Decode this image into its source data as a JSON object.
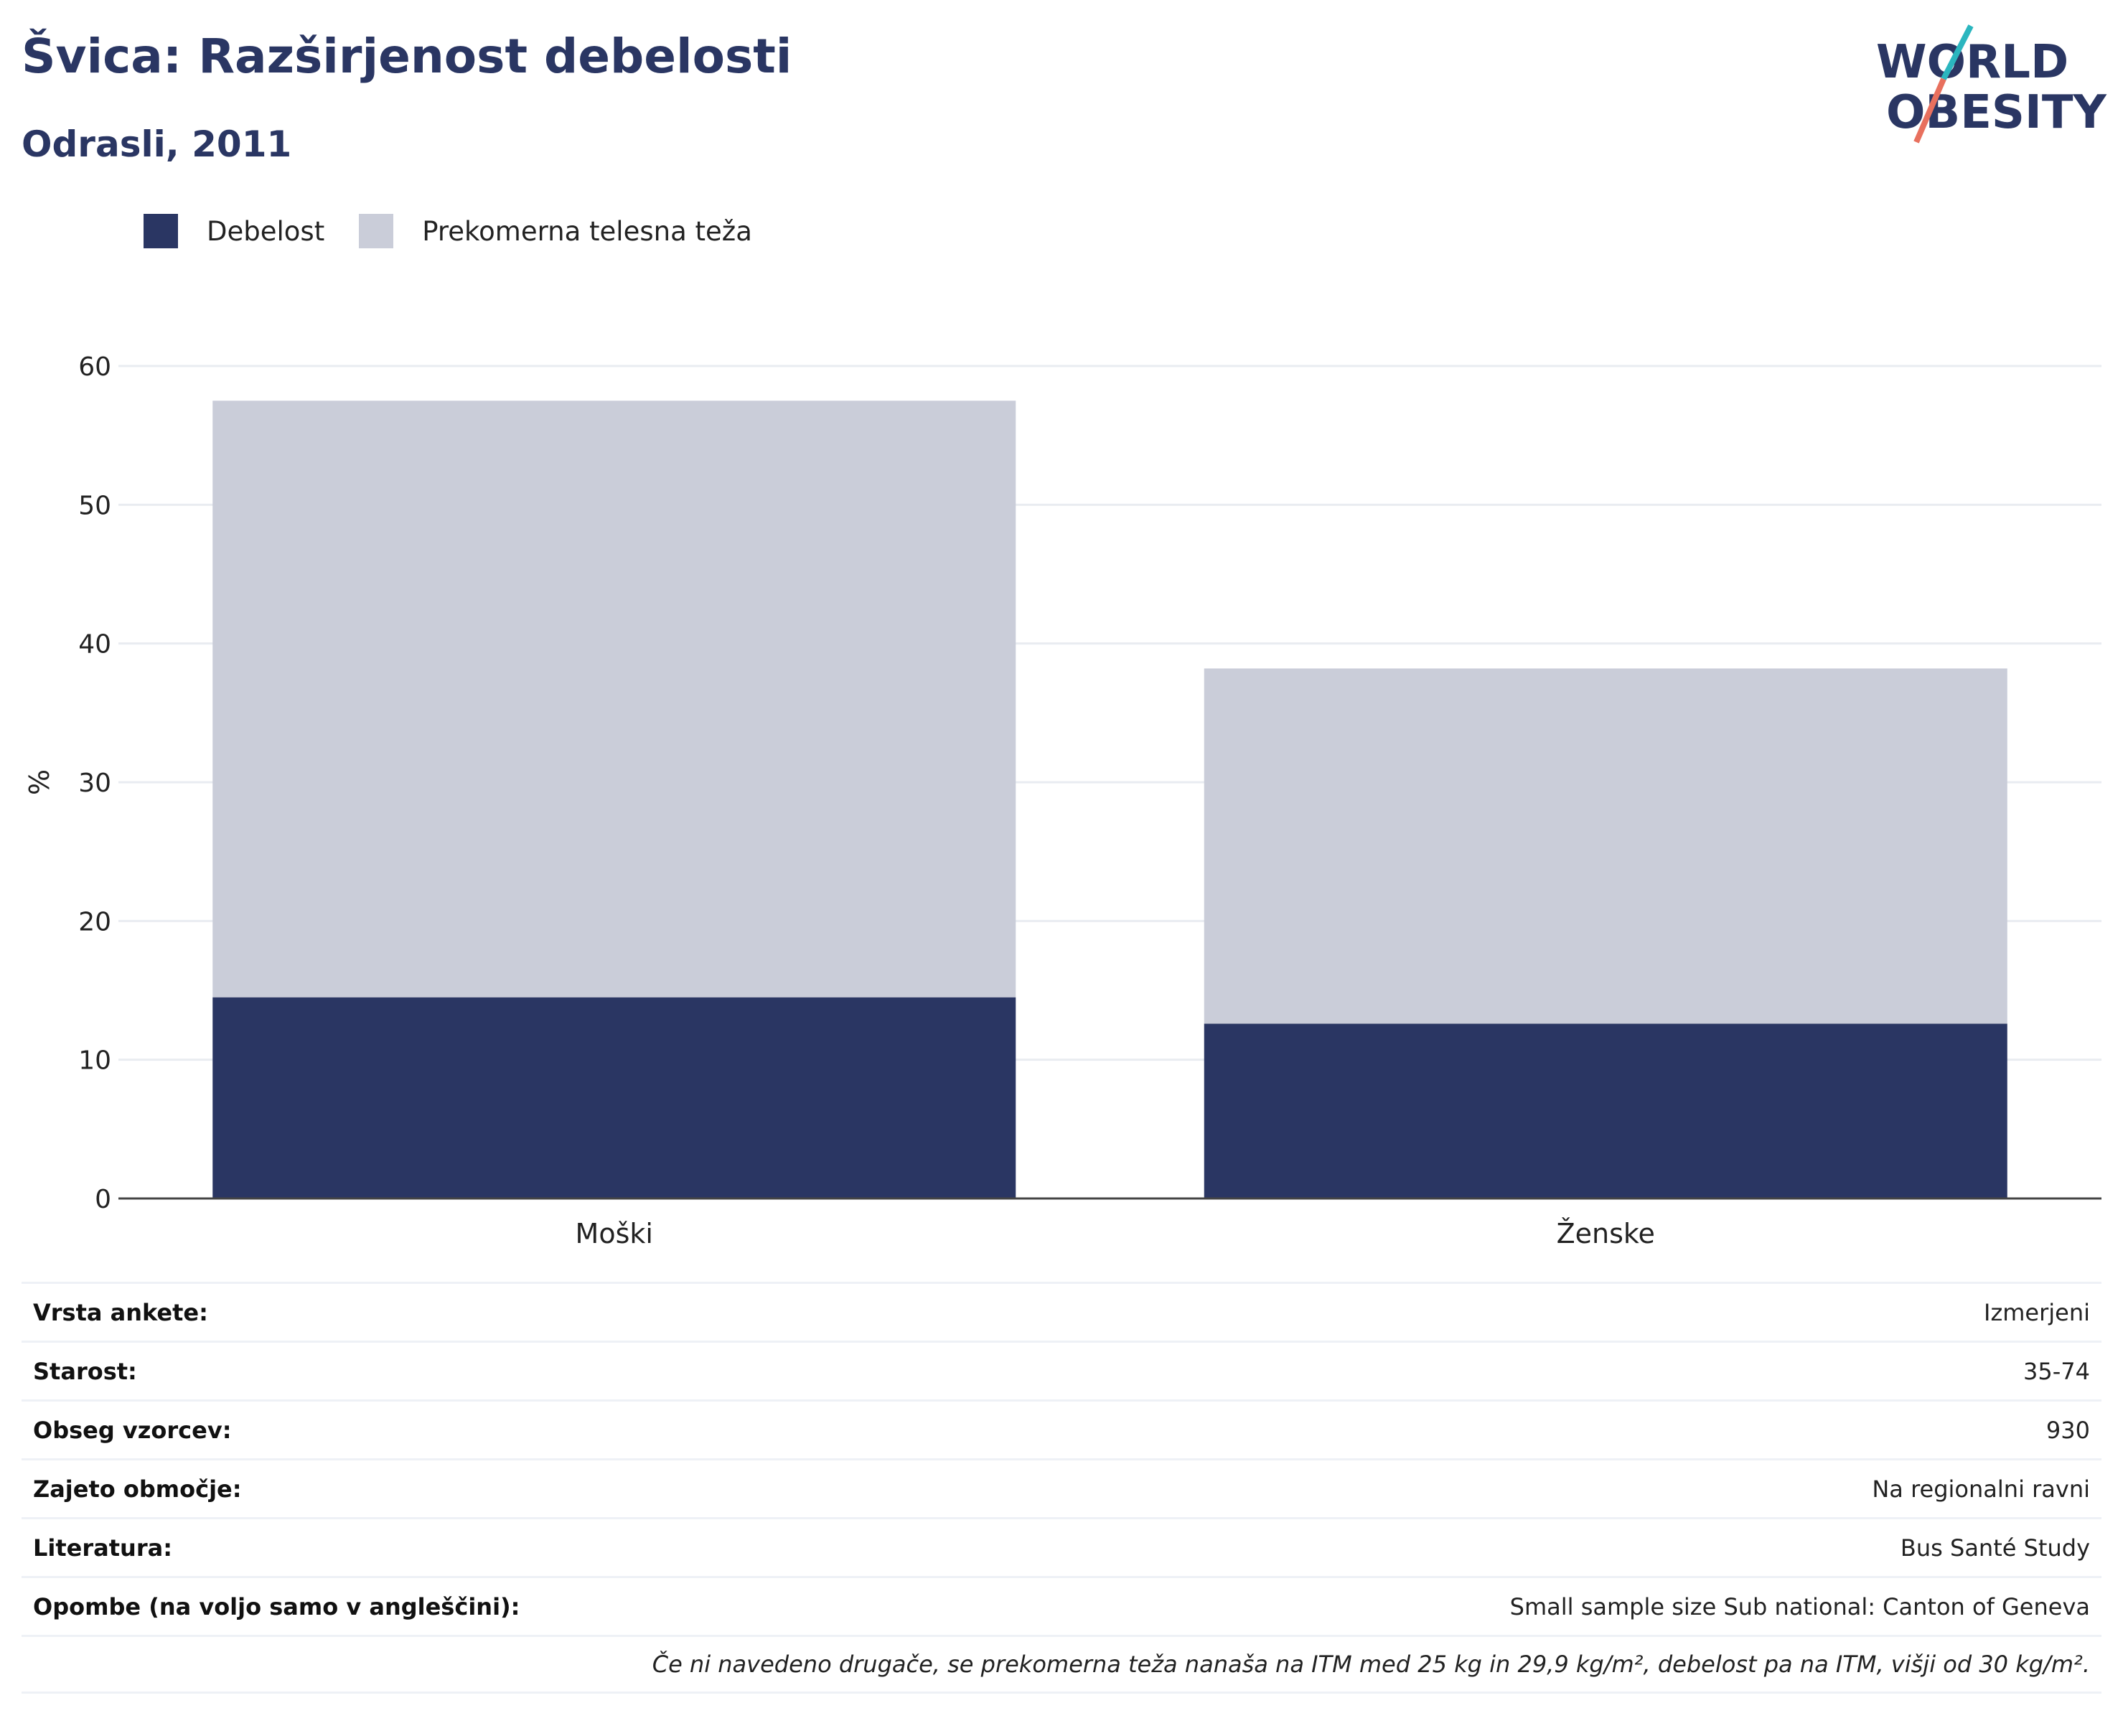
{
  "header": {
    "title": "Švica: Razširjenost debelosti",
    "subtitle": "Odrasli, 2011"
  },
  "logo": {
    "line1": "WORLD",
    "line2": "OBESITY"
  },
  "colors": {
    "obesity": "#2a3663",
    "overweight": "#cacdd9",
    "title": "#2a3663",
    "logo_teal": "#2bb6bf",
    "logo_coral": "#e8705e"
  },
  "legend": [
    {
      "label": "Debelost",
      "color": "#2a3663"
    },
    {
      "label": "Prekomerna telesna teža",
      "color": "#cacdd9"
    }
  ],
  "chart_data": {
    "type": "bar",
    "stacked": true,
    "categories": [
      "Moški",
      "Ženske"
    ],
    "series": [
      {
        "name": "Debelost",
        "values": [
          14.5,
          12.6
        ]
      },
      {
        "name": "Prekomerna telesna teža",
        "values": [
          43,
          25.6
        ]
      }
    ],
    "ylabel": "%",
    "ylim": [
      0,
      60
    ],
    "yticks": [
      0,
      10,
      20,
      30,
      40,
      50,
      60
    ],
    "grid": true,
    "legend_position": "top-left"
  },
  "info": {
    "rows": [
      {
        "key": "Vrsta ankete:",
        "value": "Izmerjeni"
      },
      {
        "key": "Starost:",
        "value": "35-74"
      },
      {
        "key": "Obseg vzorcev:",
        "value": "930"
      },
      {
        "key": "Zajeto območje:",
        "value": "Na regionalni ravni"
      },
      {
        "key": "Literatura:",
        "value": "Bus Santé Study"
      },
      {
        "key": "Opombe (na voljo samo v angleščini):",
        "value": "Small sample size Sub national: Canton of Geneva"
      }
    ],
    "footnote": "Če ni navedeno drugače, se prekomerna teža nanaša na ITM med 25 kg in 29,9 kg/m², debelost pa na ITM, višji od 30 kg/m²."
  }
}
